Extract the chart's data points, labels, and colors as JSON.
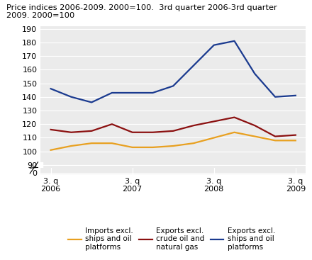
{
  "title_line1": "Price indices 2006-2009. 2000=100.  3rd quarter 2006-3rd quarter",
  "title_line2": "2009. 2000=100",
  "x_labels": [
    "3. q\n2006",
    "3. q\n2007",
    "3. q\n2008",
    "3. q\n2009"
  ],
  "x_tick_positions": [
    0,
    4,
    8,
    12
  ],
  "x_values": [
    0,
    1,
    2,
    3,
    4,
    5,
    6,
    7,
    8,
    9,
    10,
    11,
    12
  ],
  "imports_excl": [
    101,
    104,
    106,
    106,
    103,
    103,
    104,
    106,
    110,
    114,
    111,
    108,
    108
  ],
  "exports_excl_crude": [
    116,
    114,
    115,
    120,
    114,
    114,
    115,
    119,
    122,
    125,
    119,
    111,
    112
  ],
  "exports_excl_ships": [
    146,
    140,
    136,
    143,
    143,
    143,
    148,
    163,
    178,
    181,
    157,
    140,
    141
  ],
  "imports_color": "#e8a020",
  "exports_crude_color": "#8b1010",
  "exports_ships_color": "#1a3a8f",
  "legend_imports": "Imports excl.\nships and oil\nplatforms",
  "legend_exports_crude": "Exports excl.\ncrude oil and\nnatural gas",
  "legend_exports_ships": "Exports excl.\nships and oil\nplatforms",
  "line_width": 1.6,
  "upper_ylim": [
    88,
    192
  ],
  "lower_ylim": [
    -2,
    8
  ],
  "upper_yticks": [
    90,
    100,
    110,
    120,
    130,
    140,
    150,
    160,
    170,
    180,
    190
  ],
  "lower_yticks": [
    0
  ],
  "grid_color": "#ffffff",
  "bg_color": "#ebebeb"
}
